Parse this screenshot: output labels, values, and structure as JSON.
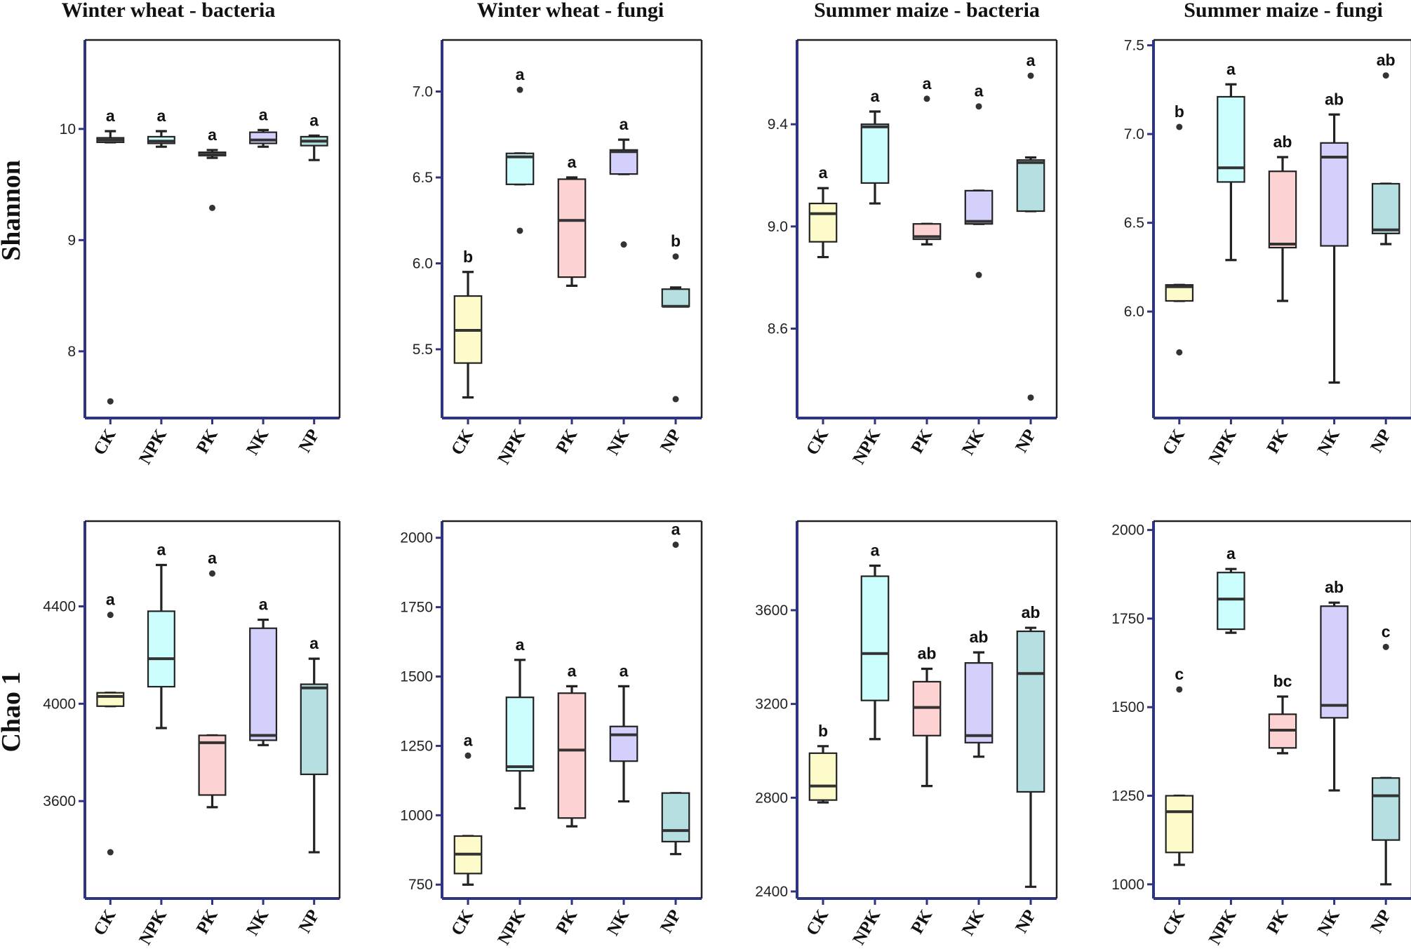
{
  "columns": [
    "Winter wheat - bacteria",
    "Winter wheat - fungi",
    "Summer maize - bacteria",
    "Summer maize - fungi"
  ],
  "rows": [
    "Shannon",
    "Chao 1"
  ],
  "colors": {
    "CK": "#fefbcb",
    "NPK": "#cdfefe",
    "PK": "#fdd2d2",
    "NK": "#d3d0fc",
    "NP": "#b6dfe2",
    "axis": "#2e3580",
    "stroke": "#222222"
  },
  "chart_data": [
    {
      "type": "box",
      "title": "Winter wheat - bacteria",
      "ylabel": "Shannon",
      "categories": [
        "CK",
        "NPK",
        "PK",
        "NK",
        "NP"
      ],
      "ylim": [
        7.4,
        10.8
      ],
      "yticks": [
        8,
        9,
        10
      ],
      "boxes": [
        {
          "min": 9.88,
          "q1": 9.88,
          "median": 9.9,
          "q3": 9.92,
          "max": 9.98,
          "outliers": [
            7.55
          ],
          "label": "a"
        },
        {
          "min": 9.84,
          "q1": 9.87,
          "median": 9.89,
          "q3": 9.93,
          "max": 9.98,
          "outliers": [],
          "label": "a"
        },
        {
          "min": 9.74,
          "q1": 9.76,
          "median": 9.77,
          "q3": 9.79,
          "max": 9.81,
          "outliers": [
            9.29
          ],
          "label": "a"
        },
        {
          "min": 9.84,
          "q1": 9.87,
          "median": 9.9,
          "q3": 9.97,
          "max": 9.99,
          "outliers": [],
          "label": "a"
        },
        {
          "min": 9.72,
          "q1": 9.85,
          "median": 9.89,
          "q3": 9.93,
          "max": 9.94,
          "outliers": [],
          "label": "a"
        }
      ]
    },
    {
      "type": "box",
      "title": "Winter wheat - fungi",
      "ylabel": "Shannon",
      "categories": [
        "CK",
        "NPK",
        "PK",
        "NK",
        "NP"
      ],
      "ylim": [
        5.1,
        7.3
      ],
      "yticks": [
        5.5,
        6.0,
        6.5,
        7.0
      ],
      "boxes": [
        {
          "min": 5.22,
          "q1": 5.42,
          "median": 5.61,
          "q3": 5.81,
          "max": 5.95,
          "outliers": [],
          "label": "b"
        },
        {
          "min": 6.46,
          "q1": 6.46,
          "median": 6.62,
          "q3": 6.64,
          "max": 6.64,
          "outliers": [
            7.01,
            6.19
          ],
          "label": "a"
        },
        {
          "min": 5.87,
          "q1": 5.92,
          "median": 6.25,
          "q3": 6.49,
          "max": 6.5,
          "outliers": [],
          "label": "a"
        },
        {
          "min": 6.52,
          "q1": 6.52,
          "median": 6.65,
          "q3": 6.66,
          "max": 6.72,
          "outliers": [
            6.11
          ],
          "label": "a"
        },
        {
          "min": 5.75,
          "q1": 5.75,
          "median": 5.75,
          "q3": 5.85,
          "max": 5.86,
          "outliers": [
            6.04,
            5.21
          ],
          "label": "b"
        }
      ]
    },
    {
      "type": "box",
      "title": "Summer maize - bacteria",
      "ylabel": "Shannon",
      "categories": [
        "CK",
        "NPK",
        "PK",
        "NK",
        "NP"
      ],
      "ylim": [
        8.25,
        9.73
      ],
      "yticks": [
        8.6,
        9.0,
        9.4
      ],
      "boxes": [
        {
          "min": 8.88,
          "q1": 8.94,
          "median": 9.05,
          "q3": 9.09,
          "max": 9.15,
          "outliers": [],
          "label": "a"
        },
        {
          "min": 9.09,
          "q1": 9.17,
          "median": 9.39,
          "q3": 9.4,
          "max": 9.45,
          "outliers": [],
          "label": "a"
        },
        {
          "min": 8.93,
          "q1": 8.95,
          "median": 8.96,
          "q3": 9.01,
          "max": 9.01,
          "outliers": [
            9.5
          ],
          "label": "a"
        },
        {
          "min": 9.01,
          "q1": 9.01,
          "median": 9.02,
          "q3": 9.14,
          "max": 9.14,
          "outliers": [
            9.47,
            8.81
          ],
          "label": "a"
        },
        {
          "min": 9.06,
          "q1": 9.06,
          "median": 9.25,
          "q3": 9.26,
          "max": 9.27,
          "outliers": [
            9.59,
            8.33
          ],
          "label": "a"
        }
      ]
    },
    {
      "type": "box",
      "title": "Summer maize - fungi",
      "ylabel": "Shannon",
      "categories": [
        "CK",
        "NPK",
        "PK",
        "NK",
        "NP"
      ],
      "ylim": [
        5.4,
        7.53
      ],
      "yticks": [
        6.0,
        6.5,
        7.0,
        7.5
      ],
      "boxes": [
        {
          "min": 6.06,
          "q1": 6.06,
          "median": 6.14,
          "q3": 6.15,
          "max": 6.15,
          "outliers": [
            7.04,
            5.77
          ],
          "label": "b"
        },
        {
          "min": 6.29,
          "q1": 6.73,
          "median": 6.81,
          "q3": 7.21,
          "max": 7.28,
          "outliers": [],
          "label": "a"
        },
        {
          "min": 6.06,
          "q1": 6.36,
          "median": 6.38,
          "q3": 6.79,
          "max": 6.87,
          "outliers": [],
          "label": "ab"
        },
        {
          "min": 5.6,
          "q1": 6.37,
          "median": 6.87,
          "q3": 6.95,
          "max": 7.11,
          "outliers": [],
          "label": "ab"
        },
        {
          "min": 6.38,
          "q1": 6.44,
          "median": 6.46,
          "q3": 6.72,
          "max": 6.72,
          "outliers": [
            7.33
          ],
          "label": "ab"
        }
      ]
    },
    {
      "type": "box",
      "title": "Winter wheat - bacteria",
      "ylabel": "Chao 1",
      "categories": [
        "CK",
        "NPK",
        "PK",
        "NK",
        "NP"
      ],
      "ylim": [
        3200,
        4750
      ],
      "yticks": [
        3600,
        4000,
        4400
      ],
      "boxes": [
        {
          "min": 3990,
          "q1": 3990,
          "median": 4030,
          "q3": 4045,
          "max": 4045,
          "outliers": [
            4365,
            3390
          ],
          "label": "a"
        },
        {
          "min": 3900,
          "q1": 4070,
          "median": 4185,
          "q3": 4380,
          "max": 4570,
          "outliers": [],
          "label": "a"
        },
        {
          "min": 3575,
          "q1": 3625,
          "median": 3840,
          "q3": 3870,
          "max": 3870,
          "outliers": [
            4535
          ],
          "label": "a"
        },
        {
          "min": 3830,
          "q1": 3850,
          "median": 3870,
          "q3": 4310,
          "max": 4345,
          "outliers": [],
          "label": "a"
        },
        {
          "min": 3390,
          "q1": 3710,
          "median": 4065,
          "q3": 4080,
          "max": 4185,
          "outliers": [],
          "label": "a"
        }
      ]
    },
    {
      "type": "box",
      "title": "Winter wheat - fungi",
      "ylabel": "Chao 1",
      "categories": [
        "CK",
        "NPK",
        "PK",
        "NK",
        "NP"
      ],
      "ylim": [
        700,
        2060
      ],
      "yticks": [
        750,
        1000,
        1250,
        1500,
        1750,
        2000
      ],
      "boxes": [
        {
          "min": 750,
          "q1": 790,
          "median": 860,
          "q3": 925,
          "max": 925,
          "outliers": [
            1215
          ],
          "label": "a"
        },
        {
          "min": 1025,
          "q1": 1160,
          "median": 1175,
          "q3": 1425,
          "max": 1560,
          "outliers": [],
          "label": "a"
        },
        {
          "min": 960,
          "q1": 990,
          "median": 1235,
          "q3": 1440,
          "max": 1465,
          "outliers": [],
          "label": "a"
        },
        {
          "min": 1050,
          "q1": 1195,
          "median": 1290,
          "q3": 1320,
          "max": 1465,
          "outliers": [],
          "label": "a"
        },
        {
          "min": 860,
          "q1": 905,
          "median": 945,
          "q3": 1080,
          "max": 1080,
          "outliers": [
            1975
          ],
          "label": "a"
        }
      ]
    },
    {
      "type": "box",
      "title": "Summer maize - bacteria",
      "ylabel": "Chao 1",
      "categories": [
        "CK",
        "NPK",
        "PK",
        "NK",
        "NP"
      ],
      "ylim": [
        2370,
        3980
      ],
      "yticks": [
        2400,
        2800,
        3200,
        3600
      ],
      "boxes": [
        {
          "min": 2780,
          "q1": 2790,
          "median": 2850,
          "q3": 2990,
          "max": 3020,
          "outliers": [],
          "label": "b"
        },
        {
          "min": 3050,
          "q1": 3215,
          "median": 3415,
          "q3": 3745,
          "max": 3790,
          "outliers": [],
          "label": "a"
        },
        {
          "min": 2850,
          "q1": 3065,
          "median": 3185,
          "q3": 3295,
          "max": 3350,
          "outliers": [],
          "label": "ab"
        },
        {
          "min": 2975,
          "q1": 3035,
          "median": 3065,
          "q3": 3375,
          "max": 3420,
          "outliers": [],
          "label": "ab"
        },
        {
          "min": 2420,
          "q1": 2825,
          "median": 3330,
          "q3": 3510,
          "max": 3525,
          "outliers": [],
          "label": "ab"
        }
      ]
    },
    {
      "type": "box",
      "title": "Summer maize - fungi",
      "ylabel": "Chao 1",
      "categories": [
        "CK",
        "NPK",
        "PK",
        "NK",
        "NP"
      ],
      "ylim": [
        960,
        2025
      ],
      "yticks": [
        1000,
        1250,
        1500,
        1750,
        2000
      ],
      "boxes": [
        {
          "min": 1055,
          "q1": 1090,
          "median": 1205,
          "q3": 1250,
          "max": 1250,
          "outliers": [
            1550
          ],
          "label": "c"
        },
        {
          "min": 1710,
          "q1": 1720,
          "median": 1805,
          "q3": 1880,
          "max": 1890,
          "outliers": [],
          "label": "a"
        },
        {
          "min": 1370,
          "q1": 1385,
          "median": 1435,
          "q3": 1480,
          "max": 1530,
          "outliers": [],
          "label": "bc"
        },
        {
          "min": 1265,
          "q1": 1470,
          "median": 1505,
          "q3": 1785,
          "max": 1795,
          "outliers": [],
          "label": "ab"
        },
        {
          "min": 1000,
          "q1": 1125,
          "median": 1250,
          "q3": 1300,
          "max": 1300,
          "outliers": [
            1670
          ],
          "label": "c"
        }
      ]
    }
  ]
}
